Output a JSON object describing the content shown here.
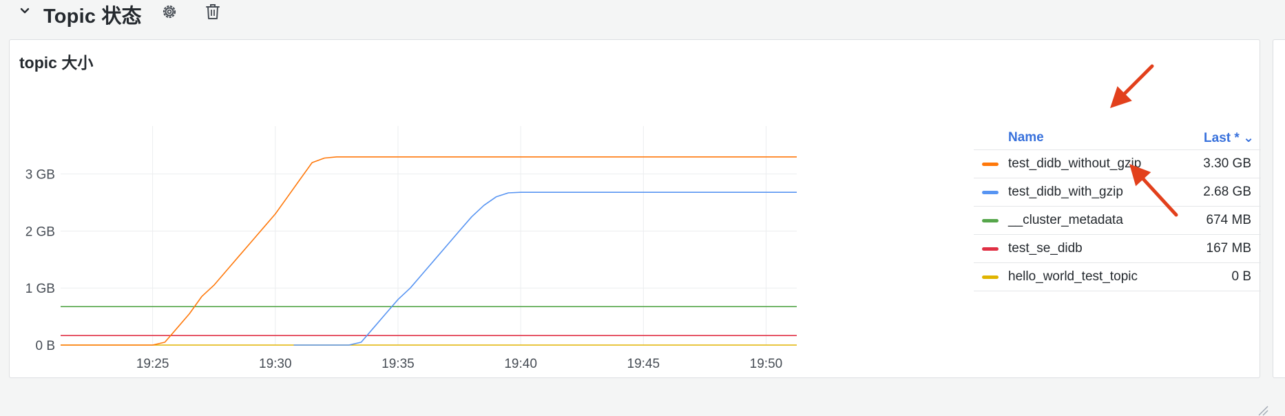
{
  "row": {
    "title": "Topic 状态",
    "icons": [
      "chevron-down-icon",
      "gear-icon",
      "trash-icon"
    ]
  },
  "panel": {
    "title": "topic 大小"
  },
  "legend": {
    "header_name": "Name",
    "header_last": "Last * ⌄",
    "rows": [
      {
        "name": "test_didb_without_gzip",
        "value": "3.30 GB",
        "color": "#ff780a"
      },
      {
        "name": "test_didb_with_gzip",
        "value": "2.68 GB",
        "color": "#5794f2"
      },
      {
        "name": "__cluster_metadata",
        "value": "674 MB",
        "color": "#56a64b"
      },
      {
        "name": "test_se_didb",
        "value": "167 MB",
        "color": "#e02f44"
      },
      {
        "name": "hello_world_test_topic",
        "value": "0 B",
        "color": "#e0b400"
      }
    ]
  },
  "annotation_color": "#e2401c",
  "chart_data": {
    "type": "line",
    "title": "topic 大小",
    "xlabel": "",
    "ylabel": "",
    "x_ticks": [
      "19:25",
      "19:30",
      "19:35",
      "19:40",
      "19:45",
      "19:50"
    ],
    "y_ticks": [
      "0 B",
      "1 GB",
      "2 GB",
      "3 GB"
    ],
    "x_range_minutes": [
      "19:21:15",
      "19:51:15"
    ],
    "ylim_gb": [
      0,
      3.6
    ],
    "grid": true,
    "legend_placement": "right",
    "series": [
      {
        "name": "test_didb_without_gzip",
        "color": "#ff780a",
        "points": [
          [
            "19:21:15",
            0
          ],
          [
            "19:25:00",
            0
          ],
          [
            "19:25:30",
            0.05
          ],
          [
            "19:26:00",
            0.3
          ],
          [
            "19:26:30",
            0.55
          ],
          [
            "19:27:00",
            0.85
          ],
          [
            "19:27:30",
            1.05
          ],
          [
            "19:28:00",
            1.3
          ],
          [
            "19:28:30",
            1.55
          ],
          [
            "19:29:00",
            1.8
          ],
          [
            "19:29:30",
            2.05
          ],
          [
            "19:30:00",
            2.3
          ],
          [
            "19:30:30",
            2.6
          ],
          [
            "19:31:00",
            2.9
          ],
          [
            "19:31:30",
            3.2
          ],
          [
            "19:32:00",
            3.28
          ],
          [
            "19:32:30",
            3.3
          ],
          [
            "19:51:15",
            3.3
          ]
        ]
      },
      {
        "name": "test_didb_with_gzip",
        "color": "#5794f2",
        "points": [
          [
            "19:30:45",
            0
          ],
          [
            "19:33:00",
            0
          ],
          [
            "19:33:30",
            0.05
          ],
          [
            "19:34:00",
            0.3
          ],
          [
            "19:34:30",
            0.55
          ],
          [
            "19:35:00",
            0.8
          ],
          [
            "19:35:30",
            1.0
          ],
          [
            "19:36:00",
            1.25
          ],
          [
            "19:36:30",
            1.5
          ],
          [
            "19:37:00",
            1.75
          ],
          [
            "19:37:30",
            2.0
          ],
          [
            "19:38:00",
            2.25
          ],
          [
            "19:38:30",
            2.45
          ],
          [
            "19:39:00",
            2.6
          ],
          [
            "19:39:30",
            2.67
          ],
          [
            "19:40:00",
            2.68
          ],
          [
            "19:51:15",
            2.68
          ]
        ]
      },
      {
        "name": "__cluster_metadata",
        "color": "#56a64b",
        "points": [
          [
            "19:21:15",
            0.674
          ],
          [
            "19:51:15",
            0.674
          ]
        ]
      },
      {
        "name": "test_se_didb",
        "color": "#e02f44",
        "points": [
          [
            "19:21:15",
            0.167
          ],
          [
            "19:51:15",
            0.167
          ]
        ]
      },
      {
        "name": "hello_world_test_topic",
        "color": "#e0b400",
        "points": [
          [
            "19:21:15",
            0
          ],
          [
            "19:51:15",
            0
          ]
        ]
      }
    ]
  }
}
